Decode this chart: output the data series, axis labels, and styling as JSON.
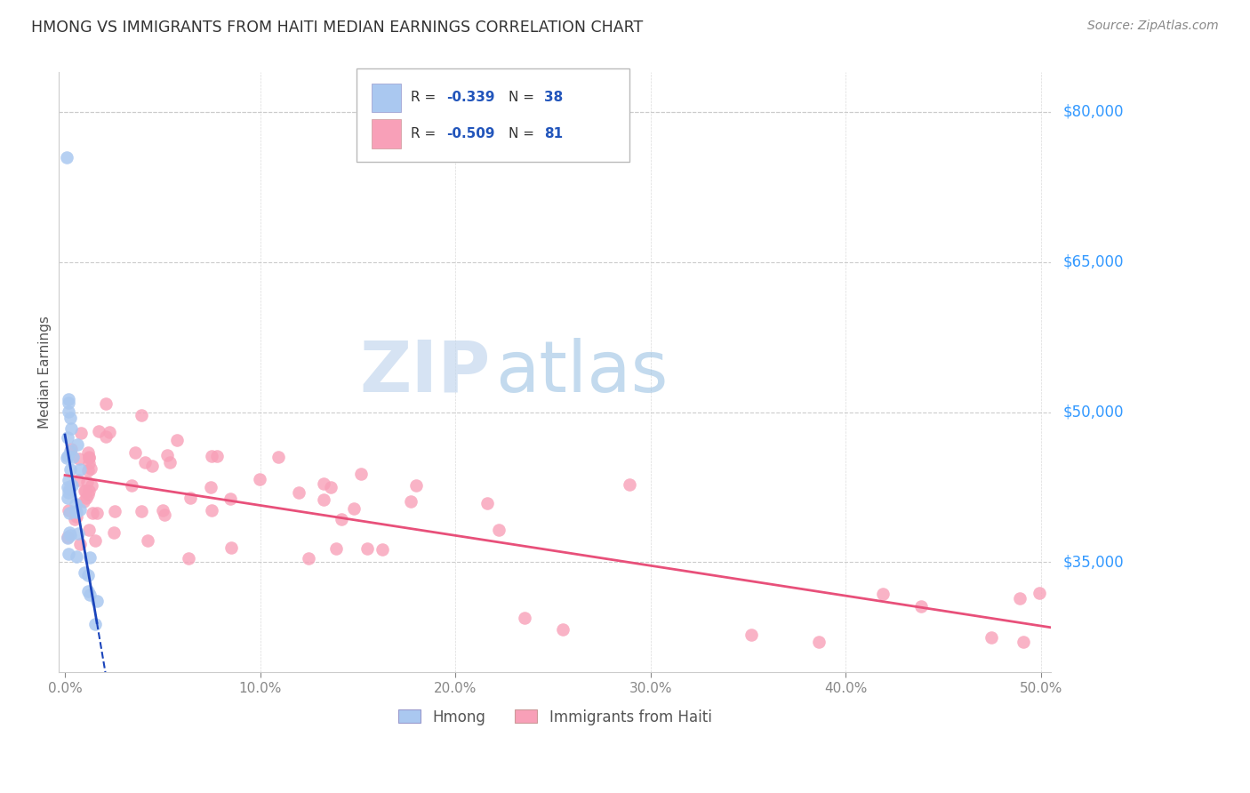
{
  "title": "HMONG VS IMMIGRANTS FROM HAITI MEDIAN EARNINGS CORRELATION CHART",
  "source": "Source: ZipAtlas.com",
  "ylabel": "Median Earnings",
  "xlim": [
    -0.003,
    0.505
  ],
  "ylim": [
    24000,
    84000
  ],
  "xtick_labels": [
    "0.0%",
    "10.0%",
    "20.0%",
    "30.0%",
    "40.0%",
    "50.0%"
  ],
  "xtick_values": [
    0.0,
    0.1,
    0.2,
    0.3,
    0.4,
    0.5
  ],
  "ytick_right_labels": [
    "$35,000",
    "$50,000",
    "$65,000",
    "$80,000"
  ],
  "ytick_right_values": [
    35000,
    50000,
    65000,
    80000
  ],
  "watermark_zip": "ZIP",
  "watermark_atlas": "atlas",
  "legend_label1": "Hmong",
  "legend_label2": "Immigrants from Haiti",
  "series1_color": "#aac8f0",
  "series2_color": "#f8a0b8",
  "trendline1_color": "#1a44bb",
  "trendline2_color": "#e8507a",
  "background_color": "#ffffff",
  "grid_color": "#cccccc",
  "legend_R1": "-0.339",
  "legend_N1": "38",
  "legend_R2": "-0.509",
  "legend_N2": "81"
}
